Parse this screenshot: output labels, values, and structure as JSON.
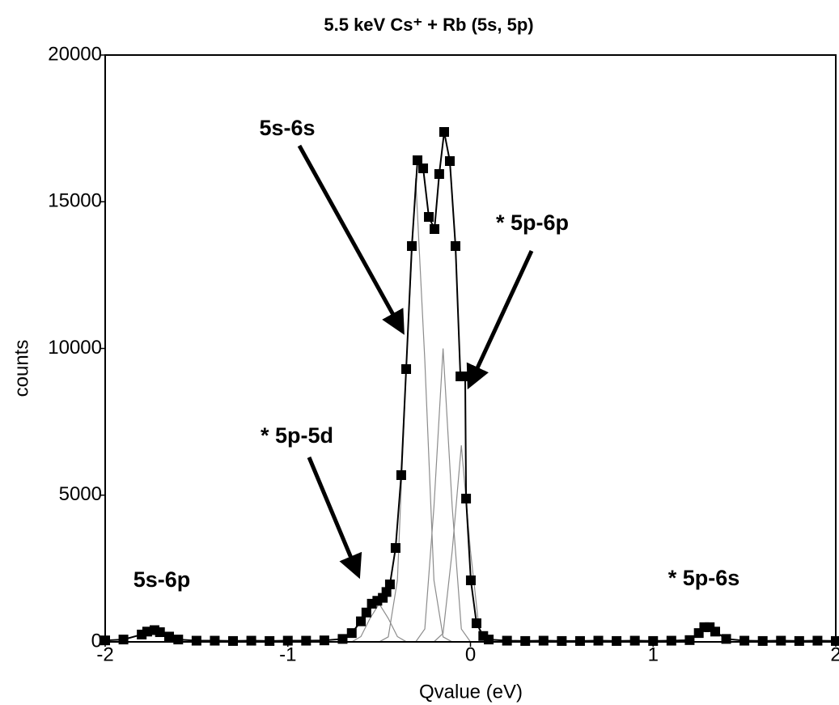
{
  "chart_data": {
    "type": "line",
    "title": "5.5 keV Cs⁺ + Rb (5s, 5p)",
    "x_label": "Qvalue (eV)",
    "y_label": "counts",
    "xlim": [
      -2,
      2
    ],
    "ylim": [
      0,
      20000
    ],
    "xticks": [
      -2,
      -1,
      0,
      1,
      2
    ],
    "yticks": [
      0,
      5000,
      10000,
      15000,
      20000
    ],
    "series": [
      {
        "color": "#000000",
        "markers": true,
        "x": [
          -2.0,
          -1.9,
          -1.8,
          -1.77,
          -1.73,
          -1.7,
          -1.65,
          -1.6,
          -1.5,
          -1.4,
          -1.3,
          -1.2,
          -1.1,
          -1.0,
          -0.9,
          -0.8,
          -0.7,
          -0.65,
          -0.6,
          -0.57,
          -0.54,
          -0.51,
          -0.48,
          -0.46,
          -0.441,
          -0.41,
          -0.379,
          -0.352,
          -0.321,
          -0.29,
          -0.259,
          -0.228,
          -0.197,
          -0.171,
          -0.144,
          -0.113,
          -0.082,
          -0.055,
          -0.029,
          -0.024,
          0.002,
          0.033,
          0.07,
          0.1,
          0.2,
          0.3,
          0.4,
          0.5,
          0.6,
          0.7,
          0.8,
          0.9,
          1.0,
          1.1,
          1.2,
          1.25,
          1.28,
          1.31,
          1.34,
          1.4,
          1.5,
          1.6,
          1.7,
          1.8,
          1.9,
          2.0
        ],
        "values": [
          50,
          80,
          250,
          350,
          400,
          330,
          180,
          80,
          40,
          40,
          30,
          40,
          30,
          40,
          40,
          50,
          100,
          300,
          700,
          1000,
          1300,
          1400,
          1500,
          1700,
          1959,
          3200,
          5683,
          9297,
          13490,
          16414,
          16138,
          14483,
          14069,
          15945,
          17379,
          16386,
          13490,
          9048,
          9048,
          4883,
          2097,
          634,
          200,
          80,
          40,
          30,
          40,
          30,
          30,
          40,
          30,
          40,
          30,
          40,
          60,
          300,
          500,
          500,
          350,
          100,
          40,
          30,
          40,
          30,
          40,
          30
        ]
      },
      {
        "color": "#8c8c8c",
        "markers": false,
        "x": [
          -0.65,
          -0.6,
          -0.55,
          -0.5,
          -0.45,
          -0.4,
          -0.35,
          -0.3,
          -0.25,
          -0.2,
          -0.15,
          -0.1,
          -0.05,
          0,
          0.05,
          0.1
        ],
        "values": [
          0,
          0,
          0,
          0,
          170,
          2100,
          9600,
          15800,
          9600,
          2100,
          170,
          0,
          0,
          0,
          0,
          0
        ]
      },
      {
        "color": "#8c8c8c",
        "markers": false,
        "x": [
          -0.65,
          -0.6,
          -0.55,
          -0.5,
          -0.45,
          -0.4,
          -0.35,
          -0.3,
          -0.25,
          -0.2,
          -0.15,
          -0.1,
          -0.05,
          0,
          0.05,
          0.1
        ],
        "values": [
          0,
          0,
          0,
          0,
          0,
          0,
          0,
          0,
          440,
          4600,
          10000,
          4600,
          440,
          0,
          0,
          0
        ]
      },
      {
        "color": "#8c8c8c",
        "markers": false,
        "x": [
          -0.65,
          -0.6,
          -0.55,
          -0.5,
          -0.45,
          -0.4,
          -0.35,
          -0.3,
          -0.25,
          -0.2,
          -0.15,
          -0.1,
          -0.05,
          0,
          0.05,
          0.1
        ],
        "values": [
          0,
          0,
          0,
          0,
          0,
          0,
          0,
          0,
          0,
          0,
          290,
          3100,
          6700,
          3100,
          290,
          0
        ]
      },
      {
        "color": "#8c8c8c",
        "markers": false,
        "x": [
          -0.65,
          -0.6,
          -0.55,
          -0.5,
          -0.45,
          -0.4,
          -0.35,
          -0.3,
          -0.25,
          -0.2,
          -0.15,
          -0.1,
          -0.05,
          0,
          0.05,
          0.1
        ],
        "values": [
          0,
          180,
          800,
          1300,
          800,
          180,
          0,
          0,
          0,
          0,
          0,
          0,
          0,
          0,
          0,
          0
        ]
      }
    ],
    "annotations": [
      {
        "text": "5s-6s"
      },
      {
        "text": "* 5p-6p"
      },
      {
        "text": "* 5p-5d"
      },
      {
        "text": "5s-6p"
      },
      {
        "text": "* 5p-6s"
      }
    ]
  }
}
